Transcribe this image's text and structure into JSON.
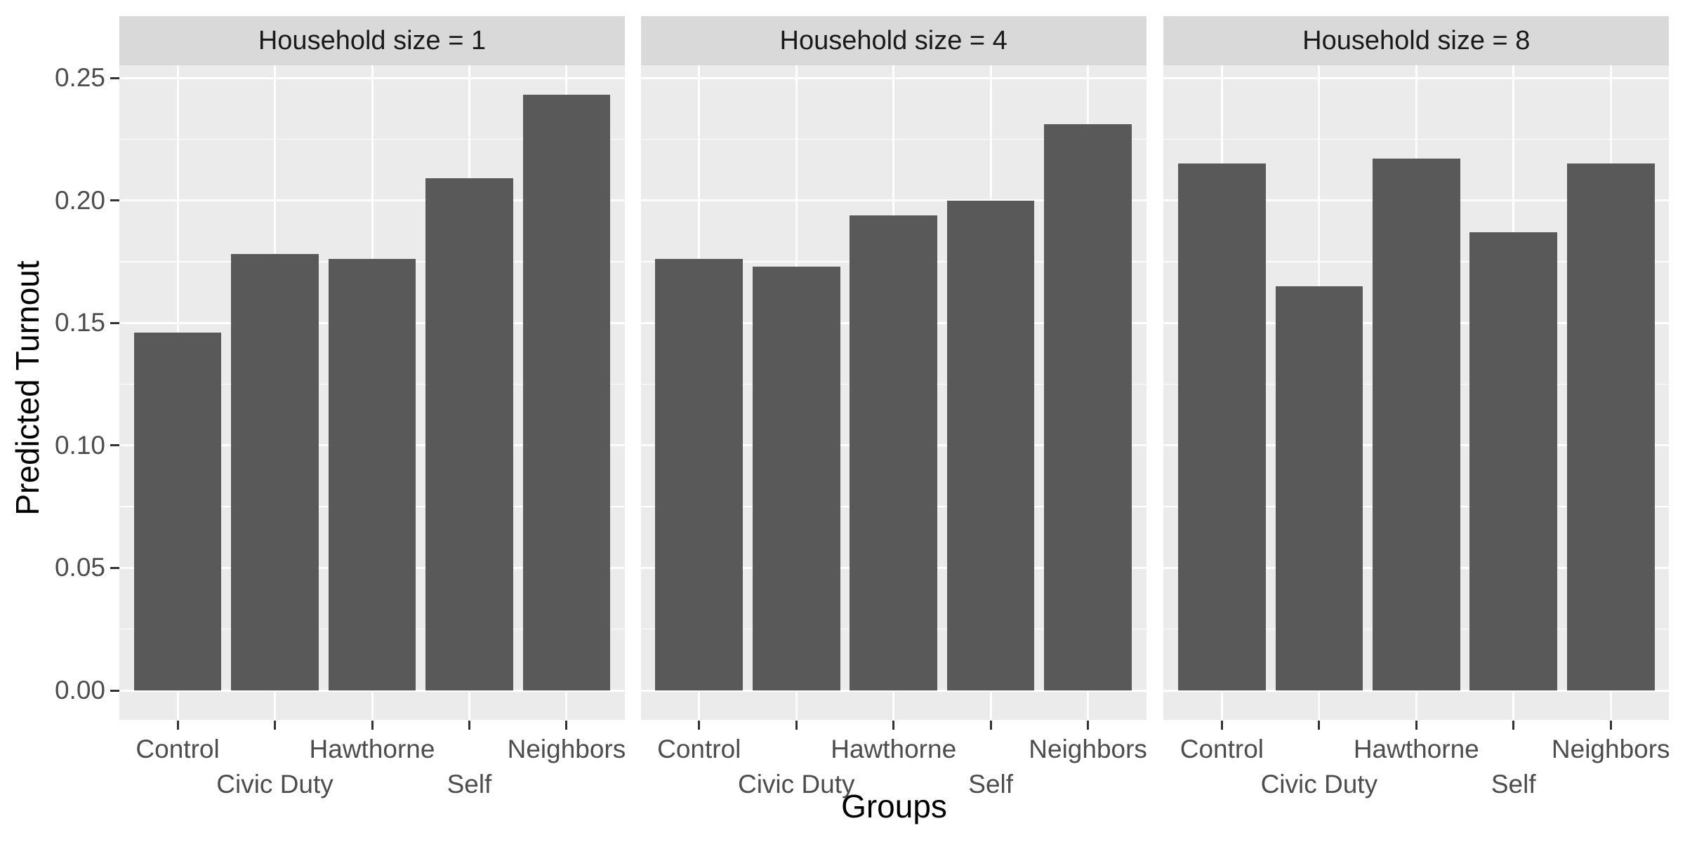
{
  "chart_data": {
    "type": "bar",
    "title": "",
    "xlabel": "Groups",
    "ylabel": "Predicted Turnout",
    "categories": [
      "Control",
      "Civic Duty",
      "Hawthorne",
      "Self",
      "Neighbors"
    ],
    "facets": [
      {
        "label": "Household size = 1",
        "values": [
          0.146,
          0.178,
          0.176,
          0.209,
          0.243
        ]
      },
      {
        "label": "Household size = 4",
        "values": [
          0.176,
          0.173,
          0.194,
          0.2,
          0.231
        ]
      },
      {
        "label": "Household size = 8",
        "values": [
          0.215,
          0.165,
          0.217,
          0.187,
          0.215
        ]
      }
    ],
    "ylim": [
      -0.012,
      0.255
    ],
    "y_major_ticks": [
      0.0,
      0.05,
      0.1,
      0.15,
      0.2,
      0.25
    ],
    "y_tick_labels": [
      "0.00",
      "0.05",
      "0.10",
      "0.15",
      "0.20",
      "0.25"
    ],
    "y_minor_ticks": [
      0.025,
      0.075,
      0.125,
      0.175,
      0.225
    ],
    "grid": true,
    "legend": "none",
    "bar_width_fraction": 0.9,
    "colors": {
      "bar_fill": "#595959",
      "panel_background": "#EBEBEB",
      "strip_background": "#D9D9D9",
      "gridline": "#FFFFFF",
      "axis_text": "#4D4D4D",
      "strip_text": "#1A1A1A",
      "axis_title": "#000000",
      "tick_mark": "#333333",
      "page_background": "#FFFFFF"
    }
  }
}
